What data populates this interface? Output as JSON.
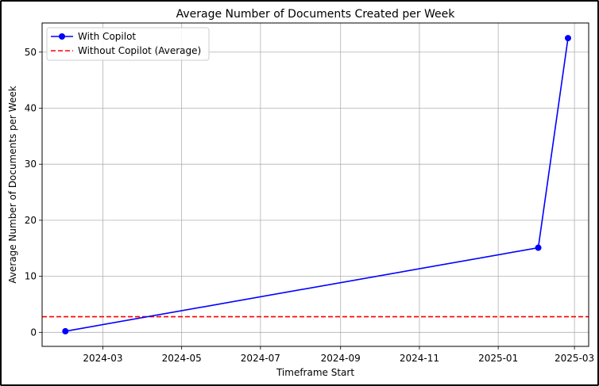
{
  "chart_data": {
    "type": "line",
    "title": "Average Number of Documents Created per Week",
    "xlabel": "Timeframe Start",
    "ylabel": "Average Number of Documents per Week",
    "x_type": "date",
    "xlim": [
      "2024-01-14",
      "2025-03-12"
    ],
    "ylim": [
      -2.5,
      55.2
    ],
    "x_ticks": [
      "2024-03",
      "2024-05",
      "2024-07",
      "2024-09",
      "2024-11",
      "2025-01",
      "2025-03"
    ],
    "y_ticks": [
      0,
      10,
      20,
      30,
      40,
      50
    ],
    "grid": true,
    "legend_position": "top-left",
    "series": [
      {
        "name": "With Copilot",
        "style": "solid line with circle markers",
        "color": "#0000ff",
        "points": [
          {
            "x": "2024-02-01",
            "y": 0.2
          },
          {
            "x": "2025-02-01",
            "y": 15.1
          },
          {
            "x": "2025-02-24",
            "y": 52.5
          }
        ]
      },
      {
        "name": "Without Copilot (Average)",
        "style": "dashed horizontal line",
        "color": "#ff0000",
        "y": 2.8
      }
    ]
  }
}
